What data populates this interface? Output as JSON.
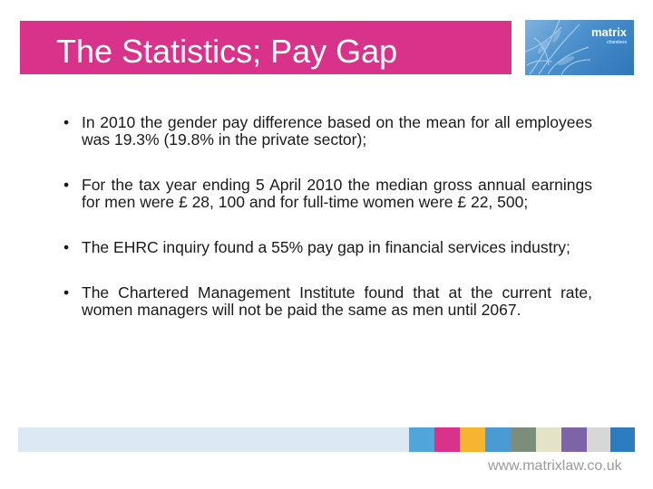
{
  "title": "The Statistics; Pay Gap",
  "logo": {
    "word": "matrix",
    "sub": "chambers"
  },
  "bullet_symbol": "•",
  "bullets": [
    "In 2010 the gender pay difference based on the mean for all employees was 19.3% (19.8% in the private sector);",
    "For the tax year ending 5 April 2010 the median gross annual earnings for men were £ 28, 100 and for full-time women were £ 22, 500;",
    "The EHRC inquiry found a 55% pay gap in financial services industry;",
    "The Chartered Management Institute found that at the current rate, women managers will not be paid the same as men until 2067."
  ],
  "footer": {
    "url": "www.matrixlaw.co.uk"
  },
  "colors": {
    "title_bar": "#d9328a",
    "stripes": [
      "#dce9f5",
      "#52a5d8",
      "#d9328a",
      "#f5b531",
      "#4a9bd4",
      "#7d8d7c",
      "#e4e3c8",
      "#7d64a6",
      "#d7d7d7",
      "#2e7cc0"
    ]
  }
}
